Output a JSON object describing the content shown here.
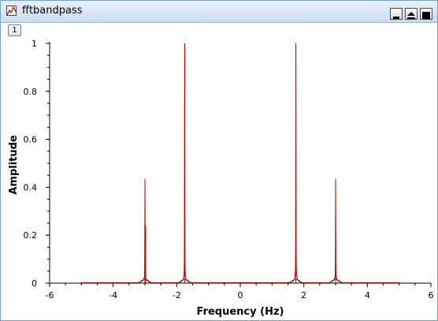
{
  "window": {
    "title": "fftbandpass",
    "app_icon": "plot-window-icon",
    "controls": [
      "minimize-icon",
      "restore-icon",
      "close-icon"
    ]
  },
  "toolbar": {
    "tab_label": "1"
  },
  "chart_data": {
    "type": "line",
    "title": "",
    "xlabel": "Frequency (Hz)",
    "ylabel": "Amplitude",
    "xlim": [
      -6,
      6
    ],
    "ylim": [
      0,
      1
    ],
    "grid": false,
    "x_ticks": [
      "-6",
      "-4",
      "-2",
      "0",
      "2",
      "4",
      "6"
    ],
    "y_ticks": [
      "0",
      "0.2",
      "0.4",
      "0.6",
      "0.8",
      "1"
    ],
    "x_range_of_data": [
      -5.0,
      5.0
    ],
    "series": [
      {
        "color": "#cc0000",
        "peaks": [
          {
            "x": -3.0,
            "y": 0.4
          },
          {
            "x": -1.75,
            "y": 1.0
          },
          {
            "x": 1.75,
            "y": 1.0
          },
          {
            "x": 3.0,
            "y": 0.4
          }
        ],
        "secondary_peaks": [
          {
            "x": -2.98,
            "y": 0.24
          }
        ]
      }
    ]
  }
}
